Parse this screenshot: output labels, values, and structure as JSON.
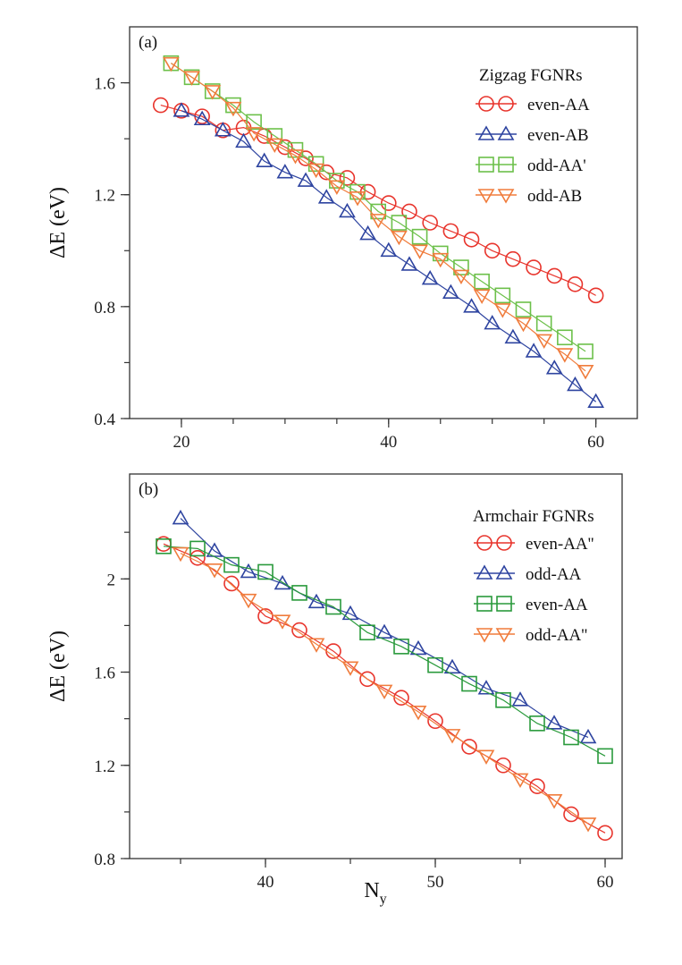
{
  "figure": {
    "xlabel": "N",
    "xlabel_sub": "y"
  },
  "chart_data": [
    {
      "type": "line",
      "panel_label": "(a)",
      "legend_title": "Zigzag FGNRs",
      "ylabel": "ΔE (eV)",
      "xlim": [
        15,
        64
      ],
      "ylim": [
        0.4,
        1.8
      ],
      "xticks": [
        20,
        40,
        60
      ],
      "yticks": [
        0.4,
        0.8,
        1.2,
        1.6
      ],
      "legend_position": "top-right",
      "grid": false,
      "series": [
        {
          "name": "even-AA",
          "marker": "circle",
          "color": "#e8342c",
          "x": [
            18,
            20,
            22,
            24,
            26,
            28,
            30,
            32,
            34,
            36,
            38,
            40,
            42,
            44,
            46,
            48,
            50,
            52,
            54,
            56,
            58,
            60
          ],
          "y": [
            1.52,
            1.5,
            1.48,
            1.43,
            1.44,
            1.41,
            1.37,
            1.33,
            1.28,
            1.26,
            1.21,
            1.17,
            1.14,
            1.1,
            1.07,
            1.04,
            1.0,
            0.97,
            0.94,
            0.91,
            0.88,
            0.84
          ]
        },
        {
          "name": "even-AB",
          "marker": "triangle-up",
          "color": "#2e44a0",
          "x": [
            20,
            22,
            24,
            26,
            28,
            30,
            32,
            34,
            36,
            38,
            40,
            42,
            44,
            46,
            48,
            50,
            52,
            54,
            56,
            58,
            60
          ],
          "y": [
            1.5,
            1.47,
            1.43,
            1.39,
            1.32,
            1.28,
            1.25,
            1.19,
            1.14,
            1.06,
            1.0,
            0.95,
            0.9,
            0.85,
            0.8,
            0.74,
            0.69,
            0.64,
            0.58,
            0.52,
            0.46
          ]
        },
        {
          "name": "odd-AA'",
          "marker": "square",
          "color": "#6cc04a",
          "x": [
            19,
            21,
            23,
            25,
            27,
            29,
            31,
            33,
            35,
            37,
            39,
            41,
            43,
            45,
            47,
            49,
            51,
            53,
            55,
            57,
            59
          ],
          "y": [
            1.67,
            1.62,
            1.57,
            1.52,
            1.46,
            1.41,
            1.36,
            1.31,
            1.25,
            1.21,
            1.14,
            1.1,
            1.05,
            0.99,
            0.94,
            0.89,
            0.84,
            0.79,
            0.74,
            0.69,
            0.64
          ]
        },
        {
          "name": "odd-AB",
          "marker": "triangle-down",
          "color": "#f07c3c",
          "x": [
            19,
            21,
            23,
            25,
            27,
            29,
            31,
            33,
            35,
            37,
            39,
            41,
            43,
            45,
            47,
            49,
            51,
            53,
            55,
            57,
            59
          ],
          "y": [
            1.67,
            1.62,
            1.57,
            1.51,
            1.42,
            1.38,
            1.34,
            1.29,
            1.23,
            1.19,
            1.11,
            1.05,
            1.0,
            0.97,
            0.91,
            0.84,
            0.79,
            0.74,
            0.68,
            0.63,
            0.57
          ]
        }
      ]
    },
    {
      "type": "line",
      "panel_label": "(b)",
      "legend_title": "Armchair FGNRs",
      "ylabel": "ΔE (eV)",
      "xlim": [
        32,
        61
      ],
      "ylim": [
        0.8,
        2.45
      ],
      "xticks": [
        40,
        50,
        60
      ],
      "yticks": [
        0.8,
        1.2,
        1.6,
        2
      ],
      "legend_position": "top-right",
      "grid": false,
      "series": [
        {
          "name": "even-AA''",
          "marker": "circle",
          "color": "#e8342c",
          "x": [
            34,
            36,
            38,
            40,
            42,
            44,
            46,
            48,
            50,
            52,
            54,
            56,
            58,
            60
          ],
          "y": [
            2.15,
            2.09,
            1.98,
            1.84,
            1.78,
            1.69,
            1.57,
            1.49,
            1.39,
            1.28,
            1.2,
            1.11,
            0.99,
            0.91
          ]
        },
        {
          "name": "odd-AA",
          "marker": "triangle-up",
          "color": "#2e44a0",
          "x": [
            35,
            37,
            39,
            41,
            43,
            45,
            47,
            49,
            51,
            53,
            55,
            57,
            59
          ],
          "y": [
            2.26,
            2.12,
            2.03,
            1.98,
            1.9,
            1.85,
            1.77,
            1.7,
            1.62,
            1.53,
            1.48,
            1.38,
            1.32
          ]
        },
        {
          "name": "even-AA",
          "marker": "square",
          "color": "#2a9a3c",
          "x": [
            34,
            36,
            38,
            40,
            42,
            44,
            46,
            48,
            50,
            52,
            54,
            56,
            58,
            60
          ],
          "y": [
            2.14,
            2.13,
            2.06,
            2.03,
            1.94,
            1.88,
            1.77,
            1.71,
            1.63,
            1.55,
            1.48,
            1.38,
            1.32,
            1.24
          ]
        },
        {
          "name": "odd-AA''",
          "marker": "triangle-down",
          "color": "#f07c3c",
          "x": [
            35,
            37,
            39,
            41,
            43,
            45,
            47,
            49,
            51,
            53,
            55,
            57,
            59
          ],
          "y": [
            2.11,
            2.04,
            1.91,
            1.82,
            1.72,
            1.62,
            1.52,
            1.43,
            1.33,
            1.24,
            1.14,
            1.05,
            0.95
          ]
        }
      ]
    }
  ]
}
